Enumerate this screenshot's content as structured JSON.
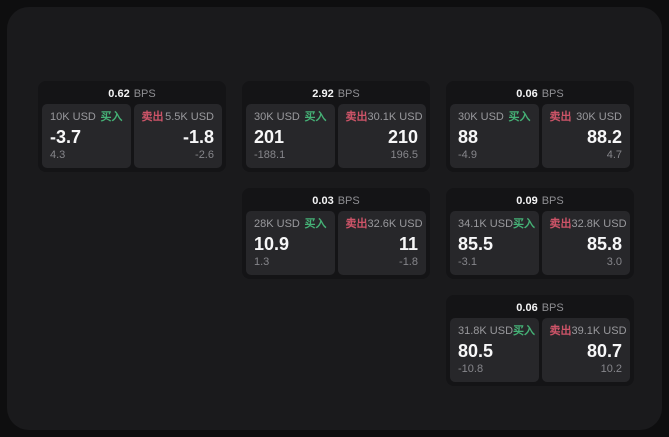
{
  "labels": {
    "buy": "买入",
    "sell": "卖出",
    "bps_unit": "BPS"
  },
  "colors": {
    "buy_green": "#45b176",
    "sell_red": "#cd5468",
    "page_bg": "#1a1a1c",
    "card_bg": "#141416",
    "panel_bg": "#27272a",
    "primary_text": "#f7f7f8",
    "muted_text": "#99999d"
  },
  "cards": [
    {
      "row": 1,
      "col": 1,
      "bps": "0.62",
      "buy": {
        "amount": "10K USD",
        "price": "-3.7",
        "sub": "4.3"
      },
      "sell": {
        "amount": "5.5K USD",
        "price": "-1.8",
        "sub": "-2.6"
      }
    },
    {
      "row": 1,
      "col": 2,
      "bps": "2.92",
      "buy": {
        "amount": "30K USD",
        "price": "201",
        "sub": "-188.1"
      },
      "sell": {
        "amount": "30.1K USD",
        "price": "210",
        "sub": "196.5"
      }
    },
    {
      "row": 1,
      "col": 3,
      "bps": "0.06",
      "buy": {
        "amount": "30K USD",
        "price": "88",
        "sub": "-4.9"
      },
      "sell": {
        "amount": "30K USD",
        "price": "88.2",
        "sub": "4.7"
      }
    },
    {
      "row": 2,
      "col": 2,
      "bps": "0.03",
      "buy": {
        "amount": "28K USD",
        "price": "10.9",
        "sub": "1.3"
      },
      "sell": {
        "amount": "32.6K USD",
        "price": "11",
        "sub": "-1.8"
      }
    },
    {
      "row": 2,
      "col": 3,
      "bps": "0.09",
      "buy": {
        "amount": "34.1K USD",
        "price": "85.5",
        "sub": "-3.1"
      },
      "sell": {
        "amount": "32.8K USD",
        "price": "85.8",
        "sub": "3.0"
      }
    },
    {
      "row": 3,
      "col": 3,
      "bps": "0.06",
      "buy": {
        "amount": "31.8K USD",
        "price": "80.5",
        "sub": "-10.8"
      },
      "sell": {
        "amount": "39.1K USD",
        "price": "80.7",
        "sub": "10.2"
      }
    }
  ]
}
